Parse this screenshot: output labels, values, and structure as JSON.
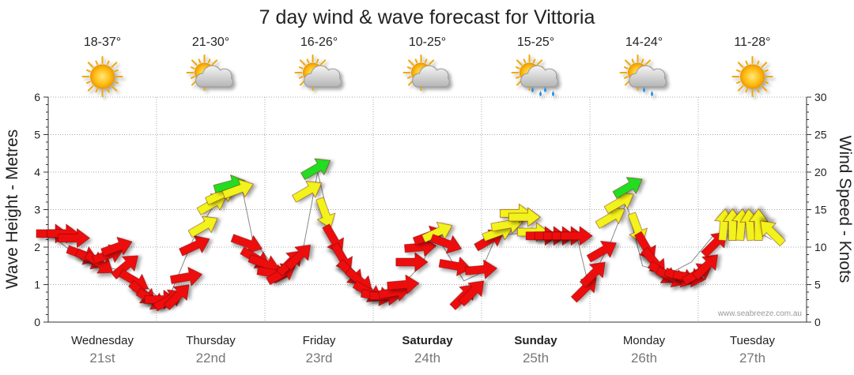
{
  "chart_data": {
    "type": "line",
    "title": "7 day wind & wave forecast for Vittoria",
    "ylabel_left": "Wave Height - Metres",
    "ylabel_right": "Wind Speed - Knots",
    "ylim_left": [
      0,
      6
    ],
    "ylim_right": [
      0,
      30
    ],
    "left_ticks": [
      "0",
      "1",
      "2",
      "3",
      "4",
      "5",
      "6"
    ],
    "right_ticks": [
      "0",
      "5",
      "10",
      "15",
      "20",
      "25",
      "30"
    ],
    "credit": "www.seabreeze.com.au",
    "days": [
      {
        "name": "Wednesday",
        "date": "21st",
        "temp": "18-37°",
        "weather": "sunny",
        "bold": false
      },
      {
        "name": "Thursday",
        "date": "22nd",
        "temp": "21-30°",
        "weather": "partly-cloudy",
        "bold": false
      },
      {
        "name": "Friday",
        "date": "23rd",
        "temp": "16-26°",
        "weather": "partly-cloudy",
        "bold": false
      },
      {
        "name": "Saturday",
        "date": "24th",
        "temp": "10-25°",
        "weather": "partly-cloudy",
        "bold": true
      },
      {
        "name": "Sunday",
        "date": "25th",
        "temp": "15-25°",
        "weather": "showers",
        "bold": true
      },
      {
        "name": "Monday",
        "date": "26th",
        "temp": "14-24°",
        "weather": "light-rain",
        "bold": false
      },
      {
        "name": "Tuesday",
        "date": "27th",
        "temp": "11-28°",
        "weather": "sunny",
        "bold": false
      }
    ],
    "wind_series": {
      "name": "Wind",
      "colors": {
        "red": "#ee1111",
        "yellow": "#f2f21a",
        "green": "#22dd22"
      },
      "points": [
        [
          0.0,
          11.8,
          90
        ],
        [
          0.1,
          11.8,
          90
        ],
        [
          0.2,
          11.2,
          90
        ],
        [
          0.28,
          9.0,
          110
        ],
        [
          0.36,
          8.4,
          115
        ],
        [
          0.44,
          7.8,
          125
        ],
        [
          0.52,
          9.0,
          70
        ],
        [
          0.6,
          10.0,
          70
        ],
        [
          0.68,
          7.5,
          50
        ],
        [
          0.76,
          5.5,
          120
        ],
        [
          0.84,
          3.8,
          130
        ],
        [
          0.92,
          3.0,
          120
        ],
        [
          1.0,
          3.0,
          90
        ],
        [
          1.08,
          3.0,
          60
        ],
        [
          1.16,
          3.5,
          45
        ],
        [
          1.24,
          6.0,
          80
        ],
        [
          1.32,
          10.2,
          65
        ],
        [
          1.4,
          12.8,
          60
        ],
        [
          1.48,
          15.8,
          60
        ],
        [
          1.56,
          17.0,
          65
        ],
        [
          1.64,
          18.3,
          75
        ],
        [
          1.72,
          17.7,
          70
        ],
        [
          1.8,
          10.5,
          110
        ],
        [
          1.88,
          8.5,
          120
        ],
        [
          1.96,
          7.8,
          110
        ],
        [
          2.04,
          6.5,
          100
        ],
        [
          2.12,
          6.5,
          60
        ],
        [
          2.2,
          8.0,
          45
        ],
        [
          2.28,
          8.8,
          45
        ],
        [
          2.36,
          17.5,
          60
        ],
        [
          2.44,
          20.5,
          60
        ],
        [
          2.52,
          14.5,
          160
        ],
        [
          2.6,
          11.0,
          150
        ],
        [
          2.68,
          8.5,
          150
        ],
        [
          2.76,
          6.5,
          135
        ],
        [
          2.84,
          5.5,
          130
        ],
        [
          2.92,
          4.0,
          120
        ],
        [
          3.0,
          3.5,
          100
        ],
        [
          3.08,
          3.5,
          90
        ],
        [
          3.16,
          4.0,
          80
        ],
        [
          3.24,
          5.0,
          85
        ],
        [
          3.32,
          8.0,
          90
        ],
        [
          3.4,
          10.0,
          85
        ],
        [
          3.48,
          11.5,
          70
        ],
        [
          3.56,
          12.0,
          65
        ],
        [
          3.64,
          10.5,
          110
        ],
        [
          3.72,
          7.5,
          100
        ],
        [
          3.8,
          3.5,
          45
        ],
        [
          3.88,
          4.0,
          45
        ],
        [
          3.96,
          7.0,
          85
        ],
        [
          4.04,
          11.0,
          60
        ],
        [
          4.12,
          12.0,
          70
        ],
        [
          4.2,
          13.0,
          80
        ],
        [
          4.28,
          14.5,
          90
        ],
        [
          4.36,
          14.0,
          90
        ],
        [
          4.44,
          12.0,
          90
        ],
        [
          4.52,
          11.5,
          90
        ],
        [
          4.6,
          11.5,
          90
        ],
        [
          4.68,
          11.5,
          90
        ],
        [
          4.76,
          11.5,
          90
        ],
        [
          4.84,
          11.5,
          90
        ],
        [
          4.92,
          4.5,
          45
        ],
        [
          5.0,
          6.5,
          45
        ],
        [
          5.08,
          9.5,
          60
        ],
        [
          5.16,
          14.0,
          60
        ],
        [
          5.24,
          16.0,
          60
        ],
        [
          5.32,
          18.0,
          60
        ],
        [
          5.4,
          12.5,
          160
        ],
        [
          5.48,
          10.0,
          150
        ],
        [
          5.56,
          8.0,
          140
        ],
        [
          5.64,
          6.5,
          125
        ],
        [
          5.72,
          6.0,
          115
        ],
        [
          5.8,
          6.0,
          110
        ],
        [
          5.88,
          6.0,
          100
        ],
        [
          5.96,
          6.5,
          60
        ],
        [
          6.04,
          7.5,
          45
        ],
        [
          6.12,
          10.5,
          45
        ],
        [
          6.2,
          13.0,
          5
        ],
        [
          6.28,
          13.0,
          0
        ],
        [
          6.36,
          13.0,
          5
        ],
        [
          6.44,
          13.0,
          355
        ],
        [
          6.52,
          13.0,
          0
        ],
        [
          6.64,
          12.0,
          315
        ]
      ]
    },
    "wave_series": {
      "name": "Wave",
      "color": "#888888",
      "points": [
        [
          0.0,
          2.3
        ],
        [
          0.3,
          1.6
        ],
        [
          0.6,
          1.4
        ],
        [
          0.85,
          1.0
        ],
        [
          1.0,
          0.6
        ],
        [
          1.1,
          0.8
        ],
        [
          1.3,
          2.2
        ],
        [
          1.55,
          3.4
        ],
        [
          1.75,
          3.6
        ],
        [
          1.85,
          2.2
        ],
        [
          2.1,
          1.3
        ],
        [
          2.3,
          1.7
        ],
        [
          2.45,
          4.0
        ],
        [
          2.6,
          2.2
        ],
        [
          2.8,
          1.2
        ],
        [
          3.0,
          0.8
        ],
        [
          3.2,
          0.9
        ],
        [
          3.4,
          1.5
        ],
        [
          3.55,
          2.3
        ],
        [
          3.8,
          1.1
        ],
        [
          3.95,
          1.3
        ],
        [
          4.1,
          2.3
        ],
        [
          4.4,
          2.4
        ],
        [
          4.7,
          2.2
        ],
        [
          4.85,
          2.2
        ],
        [
          4.95,
          1.0
        ],
        [
          5.15,
          2.1
        ],
        [
          5.3,
          3.2
        ],
        [
          5.45,
          1.5
        ],
        [
          5.7,
          1.3
        ],
        [
          5.9,
          1.6
        ],
        [
          6.1,
          2.3
        ],
        [
          6.4,
          2.6
        ],
        [
          6.64,
          2.2
        ]
      ]
    }
  }
}
